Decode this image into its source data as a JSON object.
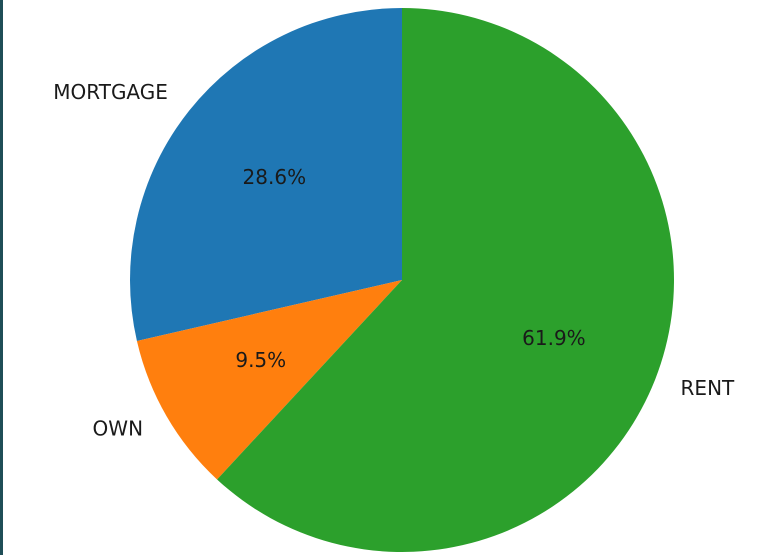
{
  "chart_data": {
    "type": "pie",
    "title": "",
    "start_angle": 90,
    "counterclockwise": true,
    "slices": [
      {
        "label": "MORTGAGE",
        "value": 28.6,
        "pct_label": "28.6%",
        "color": "#1f77b4"
      },
      {
        "label": "OWN",
        "value": 9.5,
        "pct_label": "9.5%",
        "color": "#ff7f0e"
      },
      {
        "label": "RENT",
        "value": 61.9,
        "pct_label": "61.9%",
        "color": "#2ca02c"
      }
    ]
  }
}
